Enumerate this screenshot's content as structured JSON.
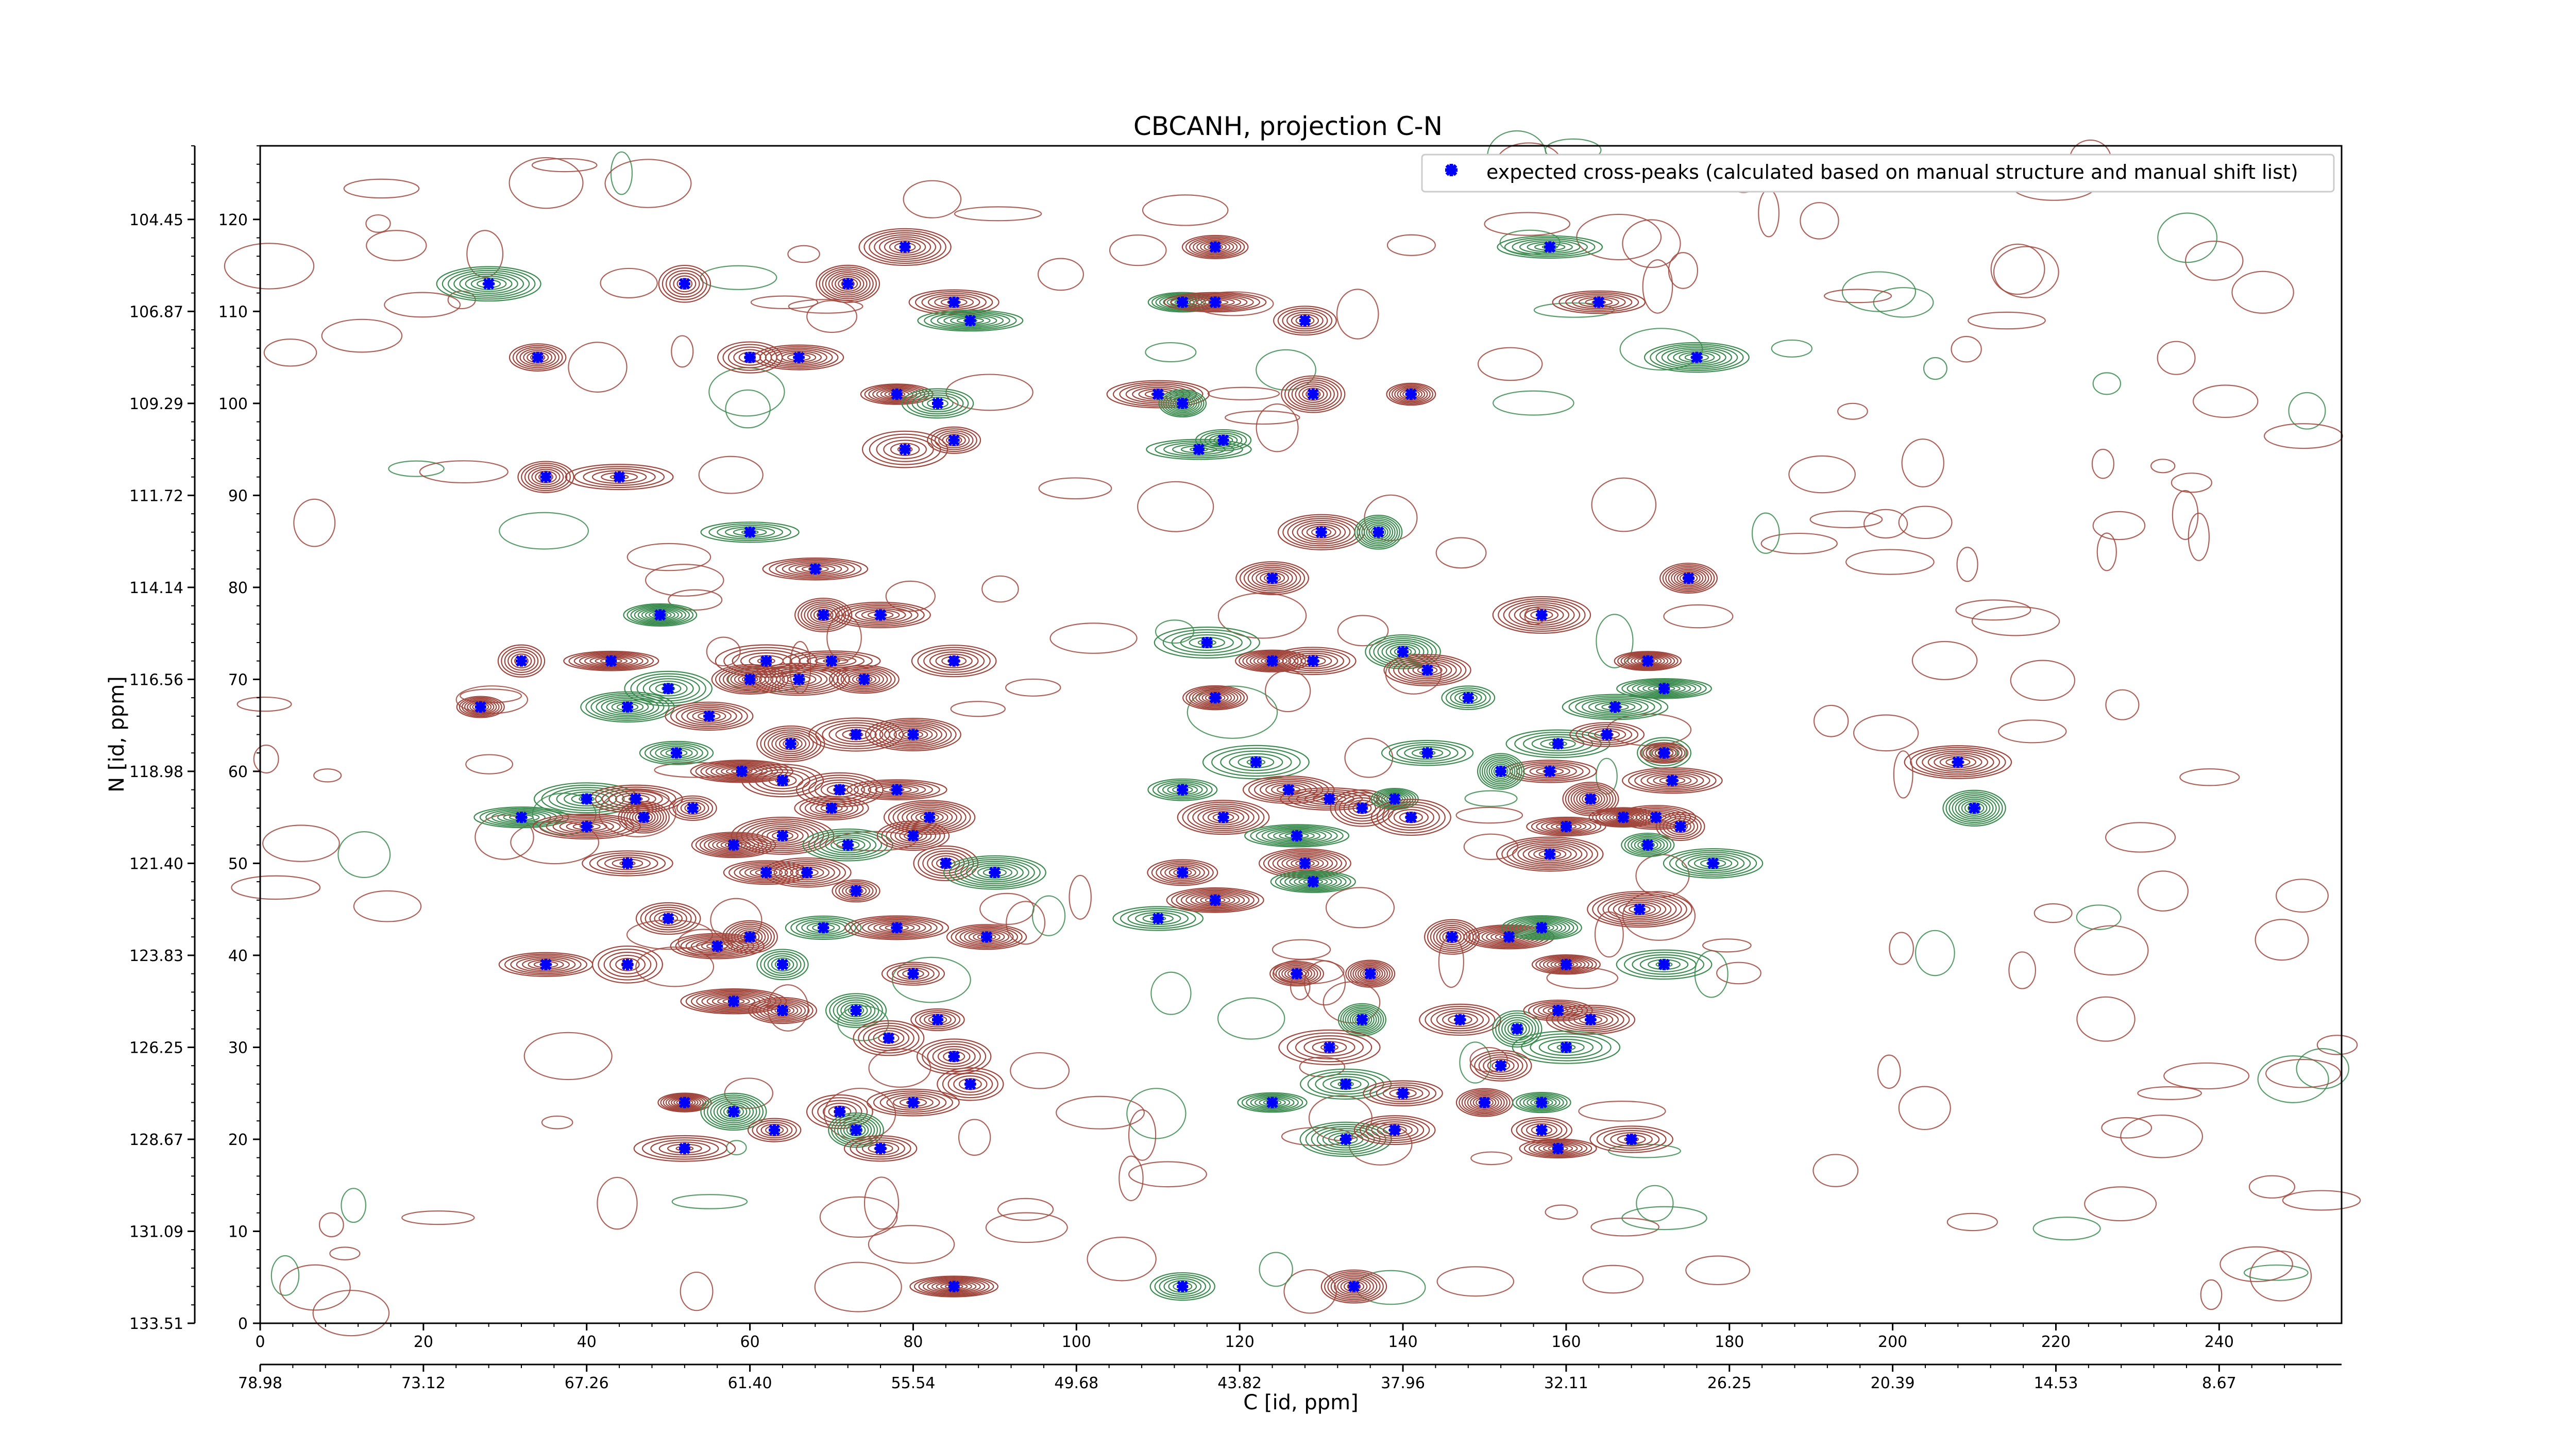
{
  "chart_data": {
    "type": "scatter",
    "title": "CBCANH, projection C-N",
    "xlabel": "C [id, ppm]",
    "ylabel": "N [id, ppm]",
    "xlim": [
      0,
      255
    ],
    "ylim": [
      0,
      128
    ],
    "x_index_ticks": [
      0,
      20,
      40,
      60,
      80,
      100,
      120,
      140,
      160,
      180,
      200,
      220,
      240
    ],
    "y_index_ticks": [
      0,
      10,
      20,
      30,
      40,
      50,
      60,
      70,
      80,
      90,
      100,
      110,
      120
    ],
    "x_ppm_ticks": [
      "78.98",
      "73.12",
      "67.26",
      "61.40",
      "55.54",
      "49.68",
      "43.82",
      "37.96",
      "32.11",
      "26.25",
      "20.39",
      "14.53",
      "8.67"
    ],
    "y_ppm_ticks": [
      "104.45",
      "106.87",
      "109.29",
      "111.72",
      "114.14",
      "116.56",
      "118.98",
      "121.40",
      "123.83",
      "126.25",
      "128.67",
      "131.09",
      "133.51"
    ],
    "grid": false,
    "legend_position": "top-right",
    "contour_colors": {
      "positive": "#a0463c",
      "negative": "#3c8c50"
    },
    "series": [
      {
        "name": "expected cross-peaks (calculated based on manual structure and manual shift list)",
        "color": "#0000ff",
        "marker": "x",
        "points": [
          [
            28,
            113
          ],
          [
            52,
            113
          ],
          [
            72,
            113
          ],
          [
            79,
            117
          ],
          [
            85,
            111
          ],
          [
            87,
            109
          ],
          [
            34,
            105
          ],
          [
            60,
            105
          ],
          [
            66,
            105
          ],
          [
            78,
            101
          ],
          [
            83,
            100
          ],
          [
            85,
            96
          ],
          [
            79,
            95
          ],
          [
            35,
            92
          ],
          [
            44,
            92
          ],
          [
            60,
            86
          ],
          [
            68,
            82
          ],
          [
            62,
            72
          ],
          [
            70,
            72
          ],
          [
            85,
            72
          ],
          [
            49,
            77
          ],
          [
            69,
            77
          ],
          [
            76,
            77
          ],
          [
            32,
            72
          ],
          [
            43,
            72
          ],
          [
            50,
            69
          ],
          [
            60,
            70
          ],
          [
            66,
            70
          ],
          [
            74,
            70
          ],
          [
            27,
            67
          ],
          [
            45,
            67
          ],
          [
            55,
            66
          ],
          [
            65,
            63
          ],
          [
            73,
            64
          ],
          [
            80,
            64
          ],
          [
            51,
            62
          ],
          [
            59,
            60
          ],
          [
            64,
            59
          ],
          [
            71,
            58
          ],
          [
            78,
            58
          ],
          [
            40,
            57
          ],
          [
            46,
            57
          ],
          [
            53,
            56
          ],
          [
            70,
            56
          ],
          [
            82,
            55
          ],
          [
            32,
            55
          ],
          [
            40,
            54
          ],
          [
            47,
            55
          ],
          [
            58,
            52
          ],
          [
            64,
            53
          ],
          [
            72,
            52
          ],
          [
            80,
            53
          ],
          [
            62,
            49
          ],
          [
            67,
            49
          ],
          [
            84,
            50
          ],
          [
            90,
            49
          ],
          [
            45,
            50
          ],
          [
            73,
            47
          ],
          [
            50,
            44
          ],
          [
            60,
            42
          ],
          [
            69,
            43
          ],
          [
            78,
            43
          ],
          [
            89,
            42
          ],
          [
            45,
            39
          ],
          [
            56,
            41
          ],
          [
            64,
            39
          ],
          [
            80,
            38
          ],
          [
            35,
            39
          ],
          [
            58,
            35
          ],
          [
            64,
            34
          ],
          [
            73,
            34
          ],
          [
            83,
            33
          ],
          [
            77,
            31
          ],
          [
            85,
            29
          ],
          [
            52,
            24
          ],
          [
            58,
            23
          ],
          [
            71,
            23
          ],
          [
            80,
            24
          ],
          [
            87,
            26
          ],
          [
            63,
            21
          ],
          [
            73,
            21
          ],
          [
            76,
            19
          ],
          [
            52,
            19
          ],
          [
            85,
            4
          ],
          [
            117,
            117
          ],
          [
            113,
            111
          ],
          [
            117,
            111
          ],
          [
            128,
            109
          ],
          [
            110,
            101
          ],
          [
            113,
            100
          ],
          [
            115,
            95
          ],
          [
            118,
            96
          ],
          [
            129,
            101
          ],
          [
            141,
            101
          ],
          [
            130,
            86
          ],
          [
            137,
            86
          ],
          [
            124,
            81
          ],
          [
            116,
            74
          ],
          [
            117,
            68
          ],
          [
            124,
            72
          ],
          [
            129,
            72
          ],
          [
            140,
            73
          ],
          [
            143,
            71
          ],
          [
            148,
            68
          ],
          [
            157,
            77
          ],
          [
            166,
            67
          ],
          [
            170,
            72
          ],
          [
            172,
            69
          ],
          [
            175,
            81
          ],
          [
            159,
            63
          ],
          [
            165,
            64
          ],
          [
            158,
            60
          ],
          [
            163,
            57
          ],
          [
            172,
            62
          ],
          [
            173,
            59
          ],
          [
            122,
            61
          ],
          [
            126,
            58
          ],
          [
            131,
            57
          ],
          [
            135,
            56
          ],
          [
            139,
            57
          ],
          [
            143,
            62
          ],
          [
            152,
            60
          ],
          [
            160,
            54
          ],
          [
            167,
            55
          ],
          [
            174,
            54
          ],
          [
            113,
            58
          ],
          [
            118,
            55
          ],
          [
            127,
            53
          ],
          [
            128,
            50
          ],
          [
            141,
            55
          ],
          [
            158,
            51
          ],
          [
            170,
            52
          ],
          [
            113,
            49
          ],
          [
            110,
            44
          ],
          [
            117,
            46
          ],
          [
            129,
            48
          ],
          [
            153,
            42
          ],
          [
            157,
            43
          ],
          [
            160,
            39
          ],
          [
            172,
            39
          ],
          [
            127,
            38
          ],
          [
            136,
            38
          ],
          [
            146,
            42
          ],
          [
            135,
            33
          ],
          [
            147,
            33
          ],
          [
            154,
            32
          ],
          [
            159,
            34
          ],
          [
            163,
            33
          ],
          [
            131,
            30
          ],
          [
            160,
            30
          ],
          [
            124,
            24
          ],
          [
            133,
            26
          ],
          [
            140,
            25
          ],
          [
            150,
            24
          ],
          [
            152,
            28
          ],
          [
            133,
            20
          ],
          [
            139,
            21
          ],
          [
            157,
            24
          ],
          [
            157,
            21
          ],
          [
            159,
            19
          ],
          [
            168,
            20
          ],
          [
            113,
            4
          ],
          [
            134,
            4
          ],
          [
            158,
            117
          ],
          [
            164,
            111
          ],
          [
            176,
            105
          ],
          [
            208,
            61
          ],
          [
            210,
            56
          ],
          [
            172,
            62
          ],
          [
            178,
            50
          ],
          [
            171,
            55
          ],
          [
            169,
            45
          ]
        ]
      }
    ]
  }
}
